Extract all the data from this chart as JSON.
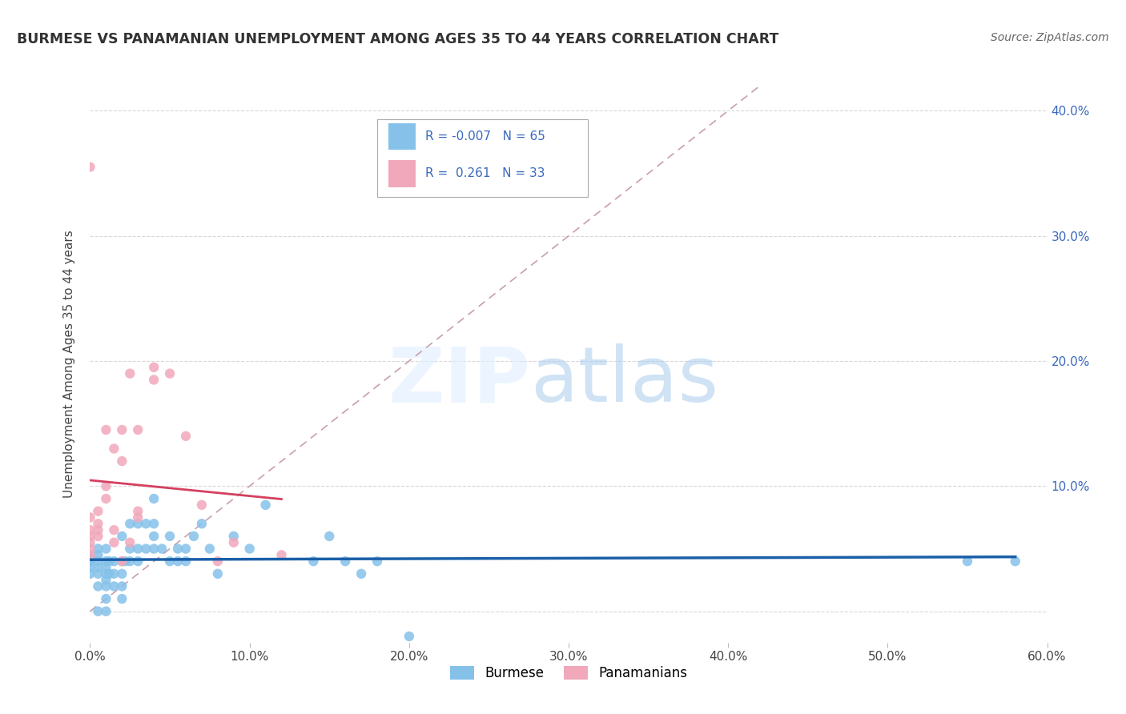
{
  "title": "BURMESE VS PANAMANIAN UNEMPLOYMENT AMONG AGES 35 TO 44 YEARS CORRELATION CHART",
  "source": "Source: ZipAtlas.com",
  "ylabel": "Unemployment Among Ages 35 to 44 years",
  "legend_burmese": "Burmese",
  "legend_panamanian": "Panamanians",
  "R_burmese": -0.007,
  "N_burmese": 65,
  "R_panamanian": 0.261,
  "N_panamanian": 33,
  "xlim": [
    0.0,
    0.6
  ],
  "ylim": [
    -0.025,
    0.42
  ],
  "xticks": [
    0.0,
    0.1,
    0.2,
    0.3,
    0.4,
    0.5,
    0.6
  ],
  "yticks": [
    0.0,
    0.1,
    0.2,
    0.3,
    0.4
  ],
  "ytick_labels": [
    "",
    "10.0%",
    "20.0%",
    "30.0%",
    "40.0%"
  ],
  "xtick_labels": [
    "0.0%",
    "10.0%",
    "20.0%",
    "30.0%",
    "40.0%",
    "50.0%",
    "60.0%"
  ],
  "color_burmese": "#85c1e9",
  "color_panamanian": "#f1a8bb",
  "trendline_color_burmese": "#1a5fa8",
  "trendline_color_panamanian": "#d44060",
  "diagonal_color": "#c8a0a8",
  "background_color": "#ffffff",
  "burmese_x": [
    0.0,
    0.0,
    0.0,
    0.0,
    0.0,
    0.005,
    0.005,
    0.005,
    0.005,
    0.005,
    0.005,
    0.005,
    0.01,
    0.01,
    0.01,
    0.01,
    0.01,
    0.01,
    0.01,
    0.01,
    0.012,
    0.012,
    0.015,
    0.015,
    0.015,
    0.02,
    0.02,
    0.02,
    0.02,
    0.02,
    0.022,
    0.025,
    0.025,
    0.025,
    0.03,
    0.03,
    0.03,
    0.035,
    0.035,
    0.04,
    0.04,
    0.04,
    0.04,
    0.045,
    0.05,
    0.05,
    0.055,
    0.055,
    0.06,
    0.06,
    0.065,
    0.07,
    0.075,
    0.08,
    0.09,
    0.1,
    0.11,
    0.14,
    0.15,
    0.16,
    0.17,
    0.18,
    0.2,
    0.55,
    0.58
  ],
  "burmese_y": [
    0.03,
    0.035,
    0.04,
    0.04,
    0.045,
    0.0,
    0.02,
    0.03,
    0.035,
    0.04,
    0.045,
    0.05,
    0.0,
    0.01,
    0.02,
    0.025,
    0.03,
    0.035,
    0.04,
    0.05,
    0.03,
    0.04,
    0.02,
    0.03,
    0.04,
    0.01,
    0.02,
    0.03,
    0.04,
    0.06,
    0.04,
    0.04,
    0.05,
    0.07,
    0.04,
    0.05,
    0.07,
    0.05,
    0.07,
    0.05,
    0.06,
    0.07,
    0.09,
    0.05,
    0.04,
    0.06,
    0.04,
    0.05,
    0.04,
    0.05,
    0.06,
    0.07,
    0.05,
    0.03,
    0.06,
    0.05,
    0.085,
    0.04,
    0.06,
    0.04,
    0.03,
    0.04,
    -0.02,
    0.04,
    0.04
  ],
  "panamanian_x": [
    0.0,
    0.0,
    0.0,
    0.0,
    0.0,
    0.0,
    0.0,
    0.005,
    0.005,
    0.005,
    0.005,
    0.01,
    0.01,
    0.01,
    0.015,
    0.015,
    0.015,
    0.02,
    0.02,
    0.02,
    0.025,
    0.025,
    0.03,
    0.03,
    0.03,
    0.04,
    0.04,
    0.05,
    0.06,
    0.07,
    0.08,
    0.09,
    0.12
  ],
  "panamanian_y": [
    0.045,
    0.05,
    0.055,
    0.06,
    0.065,
    0.075,
    0.355,
    0.06,
    0.065,
    0.07,
    0.08,
    0.09,
    0.1,
    0.145,
    0.055,
    0.065,
    0.13,
    0.04,
    0.12,
    0.145,
    0.19,
    0.055,
    0.075,
    0.08,
    0.145,
    0.185,
    0.195,
    0.19,
    0.14,
    0.085,
    0.04,
    0.055,
    0.045
  ]
}
